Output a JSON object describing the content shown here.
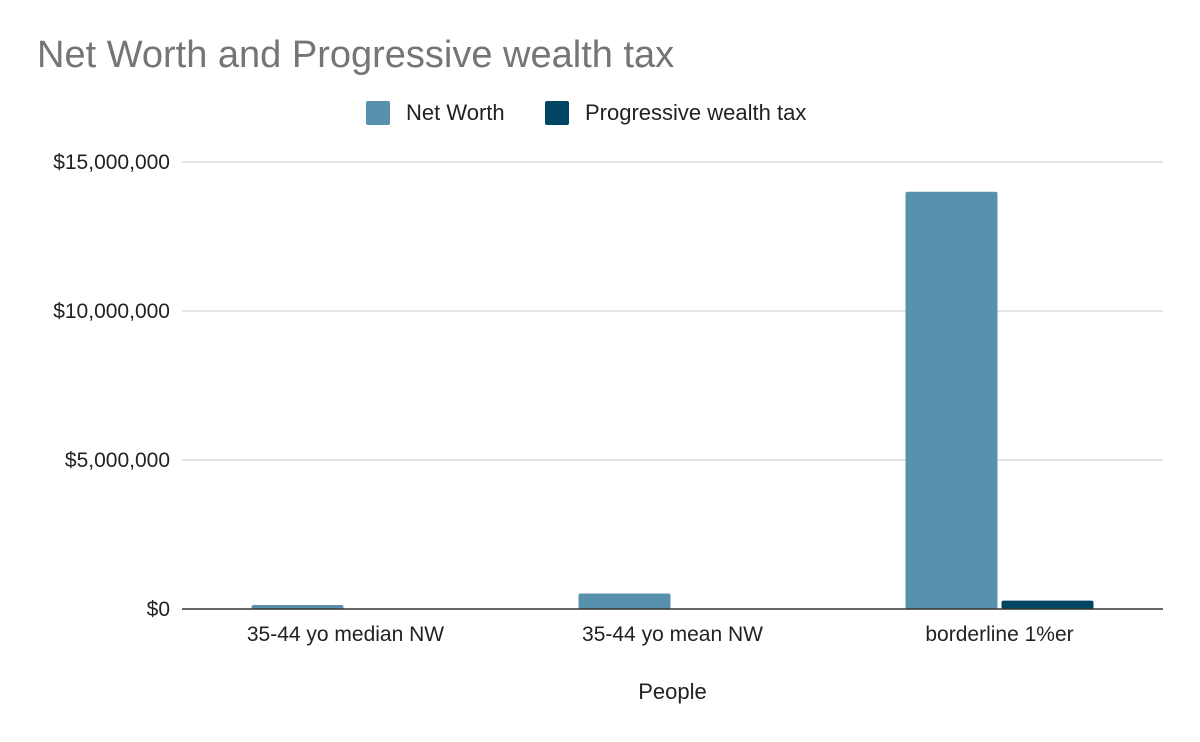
{
  "chart_data": {
    "type": "bar",
    "title": "Net Worth and Progressive wealth tax",
    "xlabel": "People",
    "ylabel": "",
    "categories": [
      "35-44 yo median NW",
      "35-44 yo mean NW",
      "borderline 1%er"
    ],
    "series": [
      {
        "name": "Net Worth",
        "color": "#5891ad",
        "values": [
          135000,
          520000,
          14000000
        ]
      },
      {
        "name": "Progressive wealth tax",
        "color": "#004561",
        "values": [
          0,
          0,
          280000
        ]
      }
    ],
    "ylim": [
      0,
      15000000
    ],
    "yticks": [
      0,
      5000000,
      10000000,
      15000000
    ],
    "ytick_labels": [
      "$0",
      "$5,000,000",
      "$10,000,000",
      "$15,000,000"
    ],
    "grid": true,
    "legend_position": "top"
  }
}
